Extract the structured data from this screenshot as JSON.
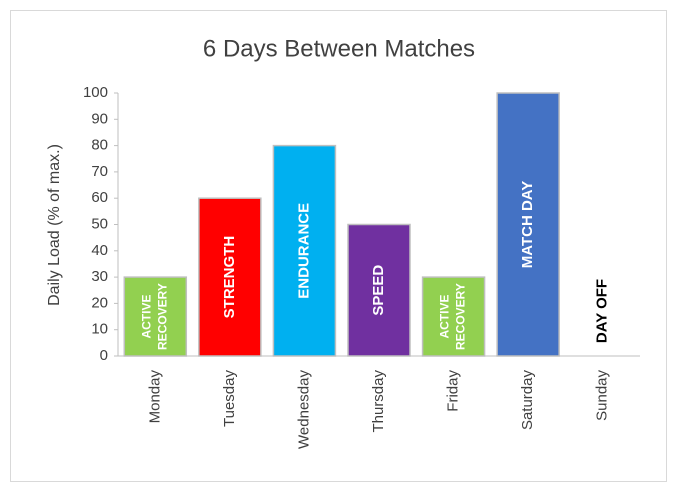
{
  "chart_data": {
    "type": "bar",
    "title": "6 Days Between Matches",
    "y_label": "Daily Load (% of max.)",
    "categories": [
      "Monday",
      "Tuesday",
      "Wednesday",
      "Thursday",
      "Friday",
      "Saturday",
      "Sunday"
    ],
    "values": [
      30,
      60,
      80,
      50,
      30,
      100,
      0
    ],
    "colors": [
      "#92d050",
      "#ff0000",
      "#00b0f0",
      "#7030a0",
      "#92d050",
      "#4472c4",
      "#ffffff"
    ],
    "bar_labels": [
      [
        "ACTIVE",
        "RECOVERY"
      ],
      [
        "STRENGTH"
      ],
      [
        "ENDURANCE"
      ],
      [
        "SPEED"
      ],
      [
        "ACTIVE",
        "RECOVERY"
      ],
      [
        "MATCH DAY"
      ],
      [
        "DAY OFF"
      ]
    ],
    "bar_label_colors": [
      "#ffffff",
      "#ffffff",
      "#ffffff",
      "#ffffff",
      "#ffffff",
      "#ffffff",
      "#000000"
    ],
    "ylim": [
      0,
      100
    ],
    "yticks": [
      0,
      10,
      20,
      30,
      40,
      50,
      60,
      70,
      80,
      90,
      100
    ],
    "grid": false
  }
}
